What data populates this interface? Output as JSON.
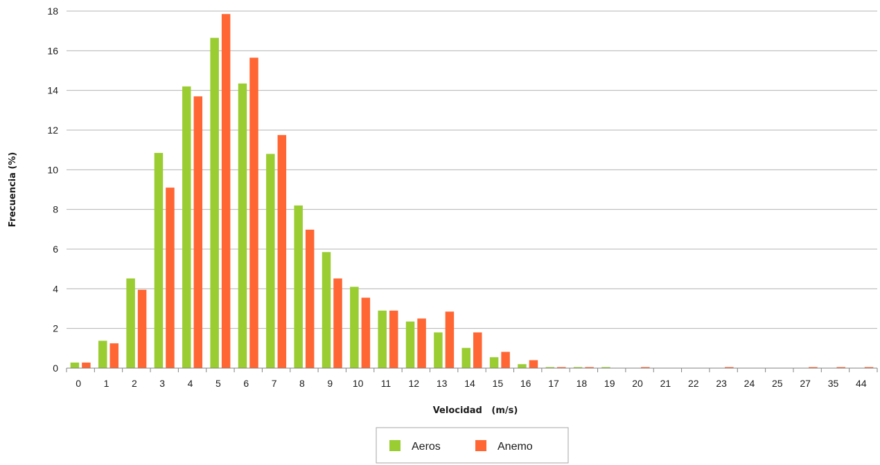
{
  "chart_data": {
    "type": "bar",
    "title": "",
    "xlabel": "Velocidad   (m/s)",
    "ylabel": "Frecuencia (%)",
    "ylim": [
      0,
      18
    ],
    "yticks": [
      0,
      2,
      4,
      6,
      8,
      10,
      12,
      14,
      16,
      18
    ],
    "grid": true,
    "legend_position": "bottom",
    "categories": [
      "0",
      "1",
      "2",
      "3",
      "4",
      "5",
      "6",
      "7",
      "8",
      "9",
      "10",
      "11",
      "12",
      "13",
      "14",
      "15",
      "16",
      "17",
      "18",
      "19",
      "20",
      "21",
      "22",
      "23",
      "24",
      "25",
      "27",
      "35",
      "44"
    ],
    "series": [
      {
        "name": "Aeros",
        "color": "#9ACD32",
        "values": [
          0.28,
          1.38,
          4.52,
          10.85,
          14.2,
          16.65,
          14.35,
          10.8,
          8.2,
          5.85,
          4.1,
          2.9,
          2.35,
          1.8,
          1.02,
          0.55,
          0.2,
          0.05,
          0.05,
          0.05,
          0,
          0,
          0,
          0,
          0,
          0,
          0,
          0,
          0
        ]
      },
      {
        "name": "Anemo",
        "color": "#FF6633",
        "values": [
          0.28,
          1.25,
          3.95,
          9.1,
          13.7,
          17.85,
          15.65,
          11.75,
          6.98,
          4.52,
          3.55,
          2.9,
          2.5,
          2.85,
          1.8,
          0.82,
          0.4,
          0.05,
          0.05,
          0,
          0.05,
          0,
          0,
          0.05,
          0,
          0,
          0.05,
          0.05,
          0.05
        ]
      }
    ]
  }
}
